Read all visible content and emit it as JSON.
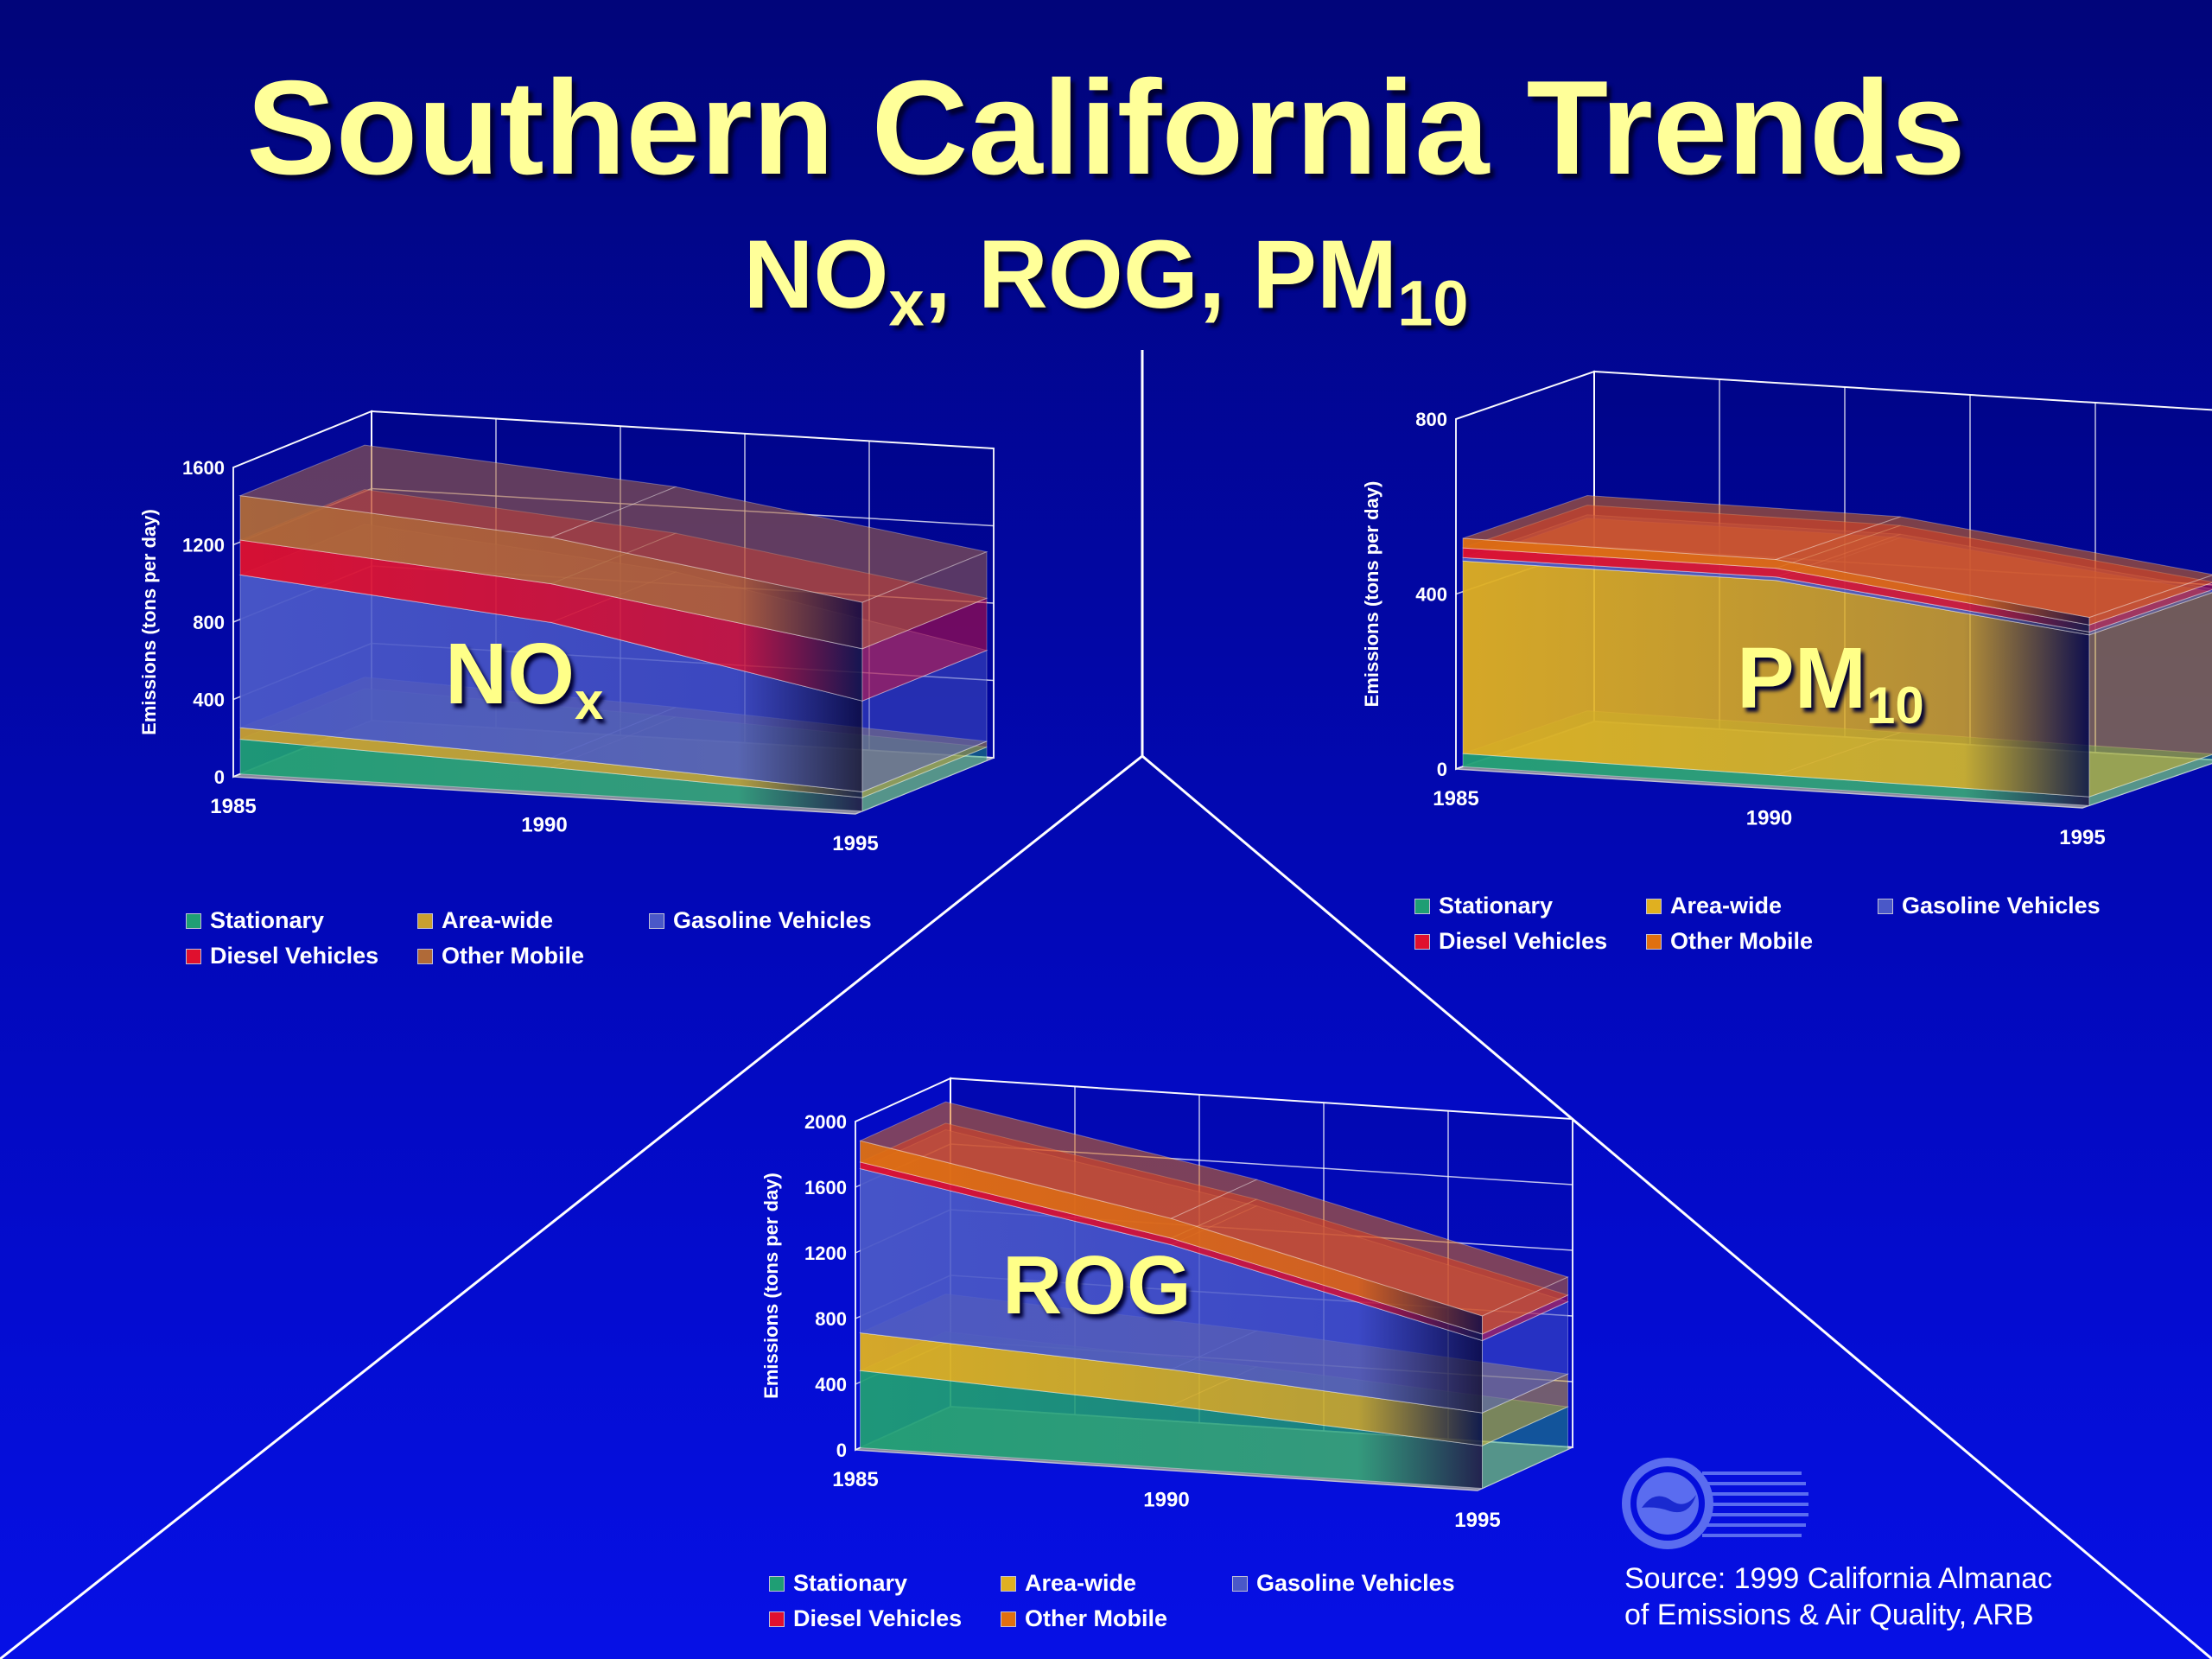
{
  "title": "Southern California Trends",
  "subtitle": {
    "main": "NO",
    "sub_x": "x",
    "rest": ", ROG, PM",
    "sub_10": "10"
  },
  "source": {
    "line1": "Source: 1999 California Almanac",
    "line2": "of Emissions & Air Quality, ARB"
  },
  "colors": {
    "background": "#0208b8",
    "title": "#ffff99",
    "Stationary": "#1f9e74",
    "Area-wide": "#e0b020",
    "Gasoline Vehicles": "#4a58c8",
    "Diesel Vehicles": "#e0102e",
    "Other Mobile": "#e07010",
    "Area-wide NOx": "#c8a030",
    "Other Mobile NOx": "#a86a40"
  },
  "chart_data": [
    {
      "id": "nox",
      "type": "area",
      "stacked": true,
      "three_d": true,
      "label_main": "NO",
      "label_sub": "x",
      "ylabel": "Emissions (tons per day)",
      "yticks": [
        "0",
        "400",
        "800",
        "1200",
        "1600"
      ],
      "ylim": [
        0,
        1600
      ],
      "x": [
        "1985",
        "1990",
        "1995"
      ],
      "series": [
        {
          "name": "Stationary",
          "values": [
            180,
            130,
            70
          ]
        },
        {
          "name": "Area-wide",
          "values": [
            60,
            50,
            30
          ]
        },
        {
          "name": "Gasoline Vehicles",
          "values": [
            790,
            700,
            470
          ]
        },
        {
          "name": "Diesel Vehicles",
          "values": [
            180,
            200,
            270
          ]
        },
        {
          "name": "Other Mobile",
          "values": [
            230,
            240,
            240
          ]
        }
      ],
      "legend": [
        "Stationary",
        "Area-wide",
        "Gasoline Vehicles",
        "Diesel Vehicles",
        "Other Mobile"
      ]
    },
    {
      "id": "pm10",
      "type": "area",
      "stacked": true,
      "three_d": true,
      "label_main": "PM",
      "label_sub": "10",
      "ylabel": "Emissions (tons per day)",
      "yticks": [
        "0",
        "400",
        "800"
      ],
      "ylim": [
        0,
        800
      ],
      "x": [
        "1985",
        "1990",
        "1995"
      ],
      "series": [
        {
          "name": "Stationary",
          "values": [
            30,
            25,
            20
          ]
        },
        {
          "name": "Area-wide",
          "values": [
            440,
            445,
            370
          ]
        },
        {
          "name": "Gasoline Vehicles",
          "values": [
            8,
            8,
            7
          ]
        },
        {
          "name": "Diesel Vehicles",
          "values": [
            22,
            20,
            16
          ]
        },
        {
          "name": "Other Mobile",
          "values": [
            22,
            20,
            17
          ]
        }
      ],
      "legend": [
        "Stationary",
        "Area-wide",
        "Gasoline Vehicles",
        "Diesel Vehicles",
        "Other Mobile"
      ]
    },
    {
      "id": "rog",
      "type": "area",
      "stacked": true,
      "three_d": true,
      "label_main": "ROG",
      "label_sub": "",
      "ylabel": "Emissions (tons per day)",
      "yticks": [
        "0",
        "400",
        "800",
        "1200",
        "1600",
        "2000"
      ],
      "ylim": [
        0,
        2000
      ],
      "x": [
        "1985",
        "1990",
        "1995"
      ],
      "series": [
        {
          "name": "Stationary",
          "values": [
            470,
            380,
            260
          ]
        },
        {
          "name": "Area-wide",
          "values": [
            230,
            220,
            200
          ]
        },
        {
          "name": "Gasoline Vehicles",
          "values": [
            1000,
            760,
            440
          ]
        },
        {
          "name": "Diesel Vehicles",
          "values": [
            40,
            40,
            40
          ]
        },
        {
          "name": "Other Mobile",
          "values": [
            130,
            120,
            110
          ]
        }
      ],
      "legend": [
        "Stationary",
        "Area-wide",
        "Gasoline Vehicles",
        "Diesel Vehicles",
        "Other Mobile"
      ]
    }
  ]
}
